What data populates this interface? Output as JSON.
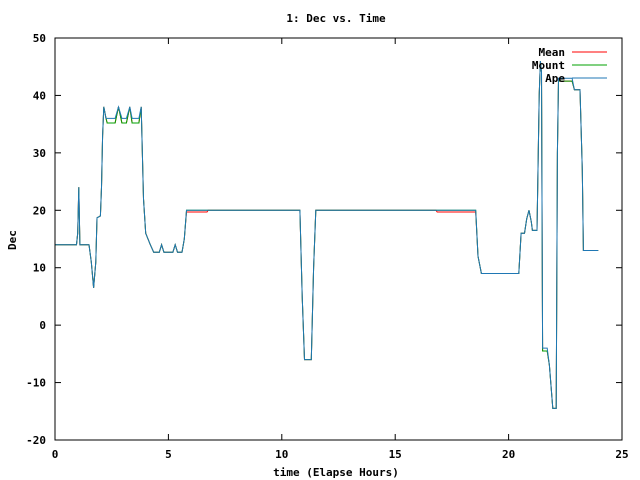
{
  "chart_data": {
    "type": "line",
    "title": "1: Dec vs. Time",
    "xlabel": "time (Elapse Hours)",
    "ylabel": "Dec",
    "xlim": [
      0,
      25
    ],
    "ylim": [
      -20,
      50
    ],
    "xticks": [
      0,
      5,
      10,
      15,
      20,
      25
    ],
    "yticks": [
      -20,
      -10,
      0,
      10,
      20,
      30,
      40,
      50
    ],
    "grid": false,
    "legend_position": "top-right",
    "series": [
      {
        "name": "Mean",
        "color": "#ff0000",
        "points": [
          [
            0,
            14
          ],
          [
            0.95,
            14
          ],
          [
            1.0,
            16
          ],
          [
            1.05,
            24
          ],
          [
            1.1,
            14
          ],
          [
            1.5,
            14
          ],
          [
            1.6,
            11
          ],
          [
            1.7,
            6.5
          ],
          [
            1.8,
            11
          ],
          [
            1.85,
            18.7
          ],
          [
            2.0,
            19
          ],
          [
            2.05,
            24
          ],
          [
            2.1,
            33
          ],
          [
            2.15,
            38
          ],
          [
            2.25,
            36
          ],
          [
            2.3,
            35.2
          ],
          [
            2.65,
            35.2
          ],
          [
            2.8,
            38
          ],
          [
            2.95,
            35.2
          ],
          [
            3.15,
            35.2
          ],
          [
            3.3,
            38
          ],
          [
            3.4,
            35.2
          ],
          [
            3.7,
            35.2
          ],
          [
            3.8,
            38
          ],
          [
            3.9,
            22
          ],
          [
            4.0,
            16
          ],
          [
            4.2,
            14
          ],
          [
            4.35,
            12.7
          ],
          [
            4.6,
            12.7
          ],
          [
            4.7,
            14
          ],
          [
            4.8,
            12.7
          ],
          [
            5.2,
            12.7
          ],
          [
            5.3,
            14
          ],
          [
            5.4,
            12.7
          ],
          [
            5.6,
            12.7
          ],
          [
            5.7,
            15
          ],
          [
            5.8,
            19.7
          ],
          [
            6.7,
            19.7
          ],
          [
            6.75,
            20
          ],
          [
            10.8,
            20
          ],
          [
            10.9,
            5
          ],
          [
            11.0,
            -6
          ],
          [
            11.3,
            -6
          ],
          [
            11.4,
            10
          ],
          [
            11.5,
            20
          ],
          [
            16.8,
            20
          ],
          [
            16.85,
            19.7
          ],
          [
            18.55,
            19.7
          ],
          [
            18.65,
            12
          ],
          [
            18.8,
            9
          ],
          [
            20.45,
            9
          ],
          [
            20.55,
            16
          ],
          [
            20.7,
            16
          ],
          [
            20.8,
            18.5
          ],
          [
            20.9,
            20
          ],
          [
            21.0,
            18
          ],
          [
            21.05,
            16.5
          ],
          [
            21.25,
            16.5
          ],
          [
            21.35,
            40
          ],
          [
            21.4,
            46
          ],
          [
            21.45,
            44
          ],
          [
            21.5,
            -4.5
          ],
          [
            21.7,
            -4.5
          ],
          [
            21.8,
            -7
          ],
          [
            21.95,
            -14.5
          ],
          [
            22.1,
            -14.5
          ],
          [
            22.15,
            30
          ],
          [
            22.2,
            42.5
          ],
          [
            22.8,
            42.5
          ],
          [
            22.9,
            41
          ],
          [
            23.15,
            41
          ],
          [
            23.25,
            27
          ],
          [
            23.3,
            13
          ],
          [
            23.95,
            13
          ]
        ]
      },
      {
        "name": "Mount",
        "color": "#00a000",
        "points": [
          [
            0,
            14
          ],
          [
            0.95,
            14
          ],
          [
            1.0,
            16
          ],
          [
            1.05,
            24
          ],
          [
            1.1,
            14
          ],
          [
            1.5,
            14
          ],
          [
            1.6,
            11
          ],
          [
            1.7,
            6.5
          ],
          [
            1.8,
            11
          ],
          [
            1.85,
            18.7
          ],
          [
            2.0,
            19
          ],
          [
            2.05,
            24
          ],
          [
            2.1,
            33
          ],
          [
            2.15,
            38
          ],
          [
            2.25,
            36
          ],
          [
            2.3,
            35.2
          ],
          [
            2.65,
            35.2
          ],
          [
            2.8,
            38
          ],
          [
            2.95,
            35.2
          ],
          [
            3.15,
            35.2
          ],
          [
            3.3,
            38
          ],
          [
            3.4,
            35.2
          ],
          [
            3.7,
            35.2
          ],
          [
            3.8,
            38
          ],
          [
            3.9,
            22
          ],
          [
            4.0,
            16
          ],
          [
            4.2,
            14
          ],
          [
            4.35,
            12.7
          ],
          [
            4.6,
            12.7
          ],
          [
            4.7,
            14
          ],
          [
            4.8,
            12.7
          ],
          [
            5.2,
            12.7
          ],
          [
            5.3,
            14
          ],
          [
            5.4,
            12.7
          ],
          [
            5.6,
            12.7
          ],
          [
            5.7,
            15
          ],
          [
            5.8,
            20
          ],
          [
            10.8,
            20
          ],
          [
            10.9,
            5
          ],
          [
            11.0,
            -6
          ],
          [
            11.3,
            -6
          ],
          [
            11.4,
            10
          ],
          [
            11.5,
            20
          ],
          [
            18.55,
            20
          ],
          [
            18.65,
            12
          ],
          [
            18.8,
            9
          ],
          [
            20.45,
            9
          ],
          [
            20.55,
            16
          ],
          [
            20.7,
            16
          ],
          [
            20.8,
            18.5
          ],
          [
            20.9,
            20
          ],
          [
            21.0,
            18
          ],
          [
            21.05,
            16.5
          ],
          [
            21.25,
            16.5
          ],
          [
            21.35,
            40
          ],
          [
            21.4,
            46
          ],
          [
            21.45,
            44
          ],
          [
            21.5,
            -4.5
          ],
          [
            21.7,
            -4.5
          ],
          [
            21.8,
            -7
          ],
          [
            21.95,
            -14.5
          ],
          [
            22.1,
            -14.5
          ],
          [
            22.15,
            30
          ],
          [
            22.2,
            42.5
          ],
          [
            22.8,
            42.5
          ],
          [
            22.9,
            41
          ],
          [
            23.15,
            41
          ],
          [
            23.25,
            27
          ],
          [
            23.3,
            13
          ],
          [
            23.95,
            13
          ]
        ]
      },
      {
        "name": "Ape",
        "color": "#1f77b4",
        "points": [
          [
            0,
            14
          ],
          [
            0.95,
            14
          ],
          [
            1.0,
            16
          ],
          [
            1.05,
            24
          ],
          [
            1.1,
            14
          ],
          [
            1.5,
            14
          ],
          [
            1.6,
            11
          ],
          [
            1.7,
            6.5
          ],
          [
            1.8,
            11
          ],
          [
            1.85,
            18.7
          ],
          [
            2.0,
            19
          ],
          [
            2.05,
            24
          ],
          [
            2.1,
            33
          ],
          [
            2.15,
            38
          ],
          [
            2.25,
            36
          ],
          [
            2.3,
            36
          ],
          [
            2.65,
            36
          ],
          [
            2.8,
            38
          ],
          [
            2.95,
            36
          ],
          [
            3.15,
            36
          ],
          [
            3.3,
            38
          ],
          [
            3.4,
            36
          ],
          [
            3.7,
            36
          ],
          [
            3.8,
            38
          ],
          [
            3.9,
            22
          ],
          [
            4.0,
            16
          ],
          [
            4.2,
            14
          ],
          [
            4.35,
            12.7
          ],
          [
            4.6,
            12.7
          ],
          [
            4.7,
            14
          ],
          [
            4.8,
            12.7
          ],
          [
            5.2,
            12.7
          ],
          [
            5.3,
            14
          ],
          [
            5.4,
            12.7
          ],
          [
            5.6,
            12.7
          ],
          [
            5.7,
            15
          ],
          [
            5.8,
            20
          ],
          [
            10.8,
            20
          ],
          [
            10.9,
            5
          ],
          [
            11.0,
            -6
          ],
          [
            11.3,
            -6
          ],
          [
            11.4,
            10
          ],
          [
            11.5,
            20
          ],
          [
            18.55,
            20
          ],
          [
            18.65,
            12
          ],
          [
            18.8,
            9
          ],
          [
            20.45,
            9
          ],
          [
            20.55,
            16
          ],
          [
            20.7,
            16
          ],
          [
            20.8,
            18.5
          ],
          [
            20.9,
            20
          ],
          [
            21.0,
            18
          ],
          [
            21.05,
            16.5
          ],
          [
            21.25,
            16.5
          ],
          [
            21.35,
            40
          ],
          [
            21.4,
            46
          ],
          [
            21.45,
            44
          ],
          [
            21.5,
            -4
          ],
          [
            21.7,
            -4
          ],
          [
            21.8,
            -7
          ],
          [
            21.95,
            -14.5
          ],
          [
            22.1,
            -14.5
          ],
          [
            22.15,
            30
          ],
          [
            22.2,
            43
          ],
          [
            22.8,
            43
          ],
          [
            22.9,
            41
          ],
          [
            23.15,
            41
          ],
          [
            23.25,
            27
          ],
          [
            23.3,
            13
          ],
          [
            23.95,
            13
          ]
        ]
      }
    ]
  }
}
